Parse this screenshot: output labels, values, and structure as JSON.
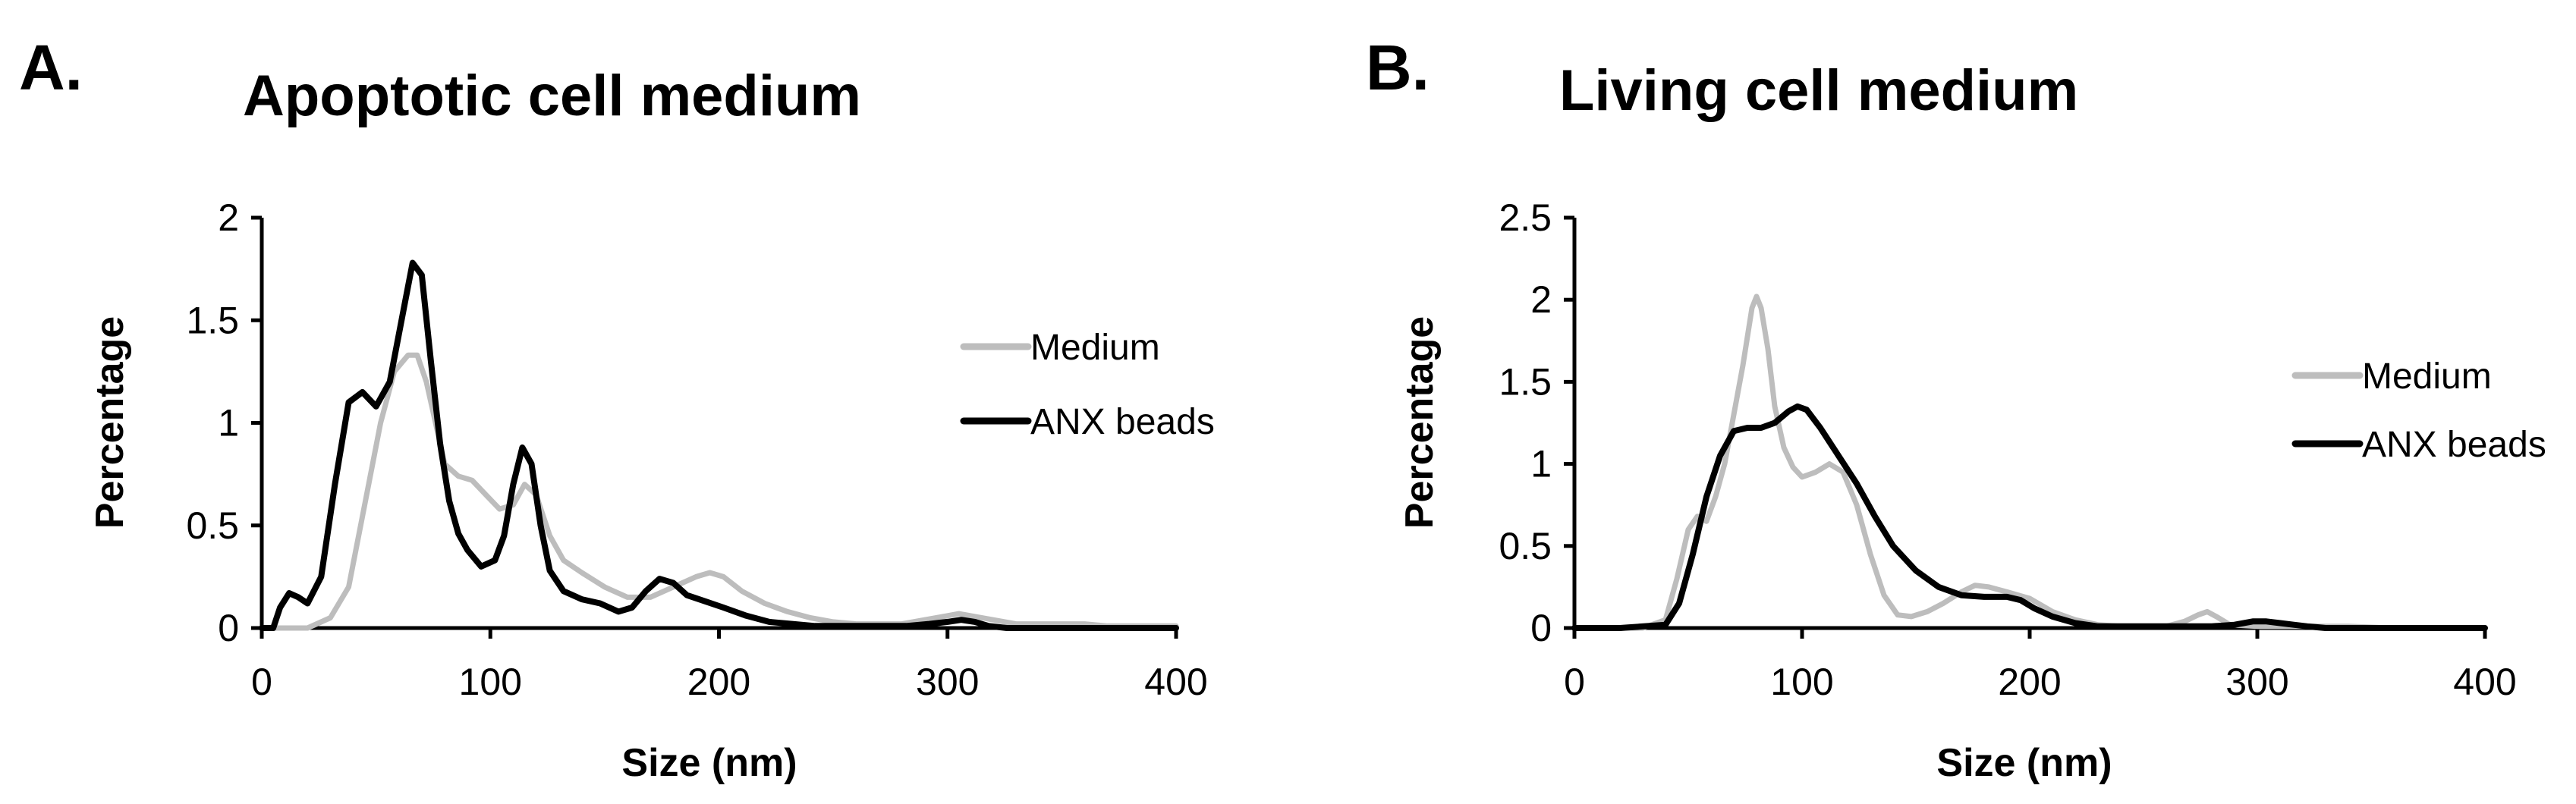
{
  "colors": {
    "medium": "#bdbdbd",
    "anx_beads": "#000000",
    "axis": "#000000",
    "background": "#ffffff"
  },
  "chart_data": [
    {
      "type": "line",
      "panel_label": "A.",
      "title": "Apoptotic cell medium",
      "xlabel": "Size (nm)",
      "ylabel": "Percentage",
      "xlim": [
        0,
        400
      ],
      "ylim": [
        0,
        2
      ],
      "xticks": [
        0,
        100,
        200,
        300,
        400
      ],
      "xtick_labels": [
        "0",
        "100",
        "200",
        "300",
        "400"
      ],
      "yticks": [
        0,
        0.5,
        1,
        1.5,
        2
      ],
      "ytick_labels": [
        "0",
        "0.5",
        "1",
        "1.5",
        "2"
      ],
      "grid": false,
      "legend_position": "right",
      "series": [
        {
          "name": "Medium",
          "color": "#bdbdbd",
          "x": [
            0,
            20,
            30,
            38,
            45,
            52,
            58,
            64,
            68,
            72,
            76,
            80,
            86,
            92,
            98,
            104,
            110,
            115,
            120,
            126,
            132,
            140,
            150,
            160,
            170,
            180,
            190,
            196,
            202,
            210,
            220,
            230,
            240,
            250,
            260,
            270,
            280,
            290,
            300,
            305,
            310,
            320,
            330,
            340,
            350,
            360,
            370,
            380,
            390,
            400
          ],
          "values": [
            0,
            0,
            0.05,
            0.2,
            0.6,
            1.0,
            1.25,
            1.33,
            1.33,
            1.2,
            1.0,
            0.8,
            0.74,
            0.72,
            0.65,
            0.58,
            0.6,
            0.7,
            0.65,
            0.45,
            0.33,
            0.27,
            0.2,
            0.15,
            0.15,
            0.2,
            0.25,
            0.27,
            0.25,
            0.18,
            0.12,
            0.08,
            0.05,
            0.03,
            0.02,
            0.02,
            0.02,
            0.04,
            0.06,
            0.07,
            0.06,
            0.04,
            0.02,
            0.02,
            0.02,
            0.02,
            0.01,
            0.01,
            0.01,
            0.01
          ]
        },
        {
          "name": "ANX beads",
          "color": "#000000",
          "x": [
            0,
            5,
            8,
            12,
            16,
            20,
            26,
            32,
            38,
            44,
            50,
            56,
            62,
            66,
            70,
            74,
            78,
            82,
            86,
            90,
            96,
            102,
            106,
            110,
            114,
            118,
            122,
            126,
            132,
            140,
            148,
            156,
            162,
            168,
            174,
            180,
            186,
            194,
            202,
            212,
            222,
            232,
            242,
            252,
            262,
            272,
            282,
            292,
            300,
            306,
            312,
            318,
            326,
            340,
            360,
            380,
            400
          ],
          "values": [
            0,
            0,
            0.1,
            0.17,
            0.15,
            0.12,
            0.25,
            0.7,
            1.1,
            1.15,
            1.08,
            1.2,
            1.55,
            1.78,
            1.72,
            1.3,
            0.9,
            0.62,
            0.46,
            0.38,
            0.3,
            0.33,
            0.45,
            0.7,
            0.88,
            0.8,
            0.5,
            0.28,
            0.18,
            0.14,
            0.12,
            0.08,
            0.1,
            0.18,
            0.24,
            0.22,
            0.16,
            0.13,
            0.1,
            0.06,
            0.03,
            0.02,
            0.01,
            0.01,
            0.01,
            0.01,
            0.01,
            0.02,
            0.03,
            0.04,
            0.03,
            0.01,
            0,
            0,
            0,
            0,
            0
          ]
        }
      ]
    },
    {
      "type": "line",
      "panel_label": "B.",
      "title": "Living cell medium",
      "xlabel": "Size (nm)",
      "ylabel": "Percentage",
      "xlim": [
        0,
        400
      ],
      "ylim": [
        0,
        2.5
      ],
      "xticks": [
        0,
        100,
        200,
        300,
        400
      ],
      "xtick_labels": [
        "0",
        "100",
        "200",
        "300",
        "400"
      ],
      "yticks": [
        0,
        0.5,
        1,
        1.5,
        2,
        2.5
      ],
      "ytick_labels": [
        "0",
        "0.5",
        "1",
        "1.5",
        "2",
        "2.5"
      ],
      "grid": false,
      "legend_position": "right",
      "series": [
        {
          "name": "Medium",
          "color": "#bdbdbd",
          "x": [
            0,
            30,
            40,
            45,
            50,
            54,
            58,
            62,
            66,
            70,
            74,
            78,
            80,
            82,
            85,
            88,
            92,
            96,
            100,
            106,
            112,
            118,
            124,
            130,
            136,
            142,
            148,
            155,
            162,
            170,
            176,
            182,
            190,
            200,
            210,
            220,
            230,
            240,
            250,
            260,
            268,
            274,
            278,
            282,
            288,
            300,
            320,
            340,
            360,
            380,
            400
          ],
          "values": [
            0,
            0,
            0.05,
            0.3,
            0.6,
            0.68,
            0.65,
            0.8,
            1.0,
            1.3,
            1.6,
            1.95,
            2.02,
            1.95,
            1.7,
            1.35,
            1.1,
            0.98,
            0.92,
            0.95,
            1.0,
            0.95,
            0.75,
            0.45,
            0.2,
            0.08,
            0.07,
            0.1,
            0.15,
            0.22,
            0.26,
            0.25,
            0.22,
            0.18,
            0.1,
            0.05,
            0.02,
            0.01,
            0.01,
            0.01,
            0.04,
            0.08,
            0.1,
            0.07,
            0.02,
            0.01,
            0.01,
            0.01,
            0,
            0,
            0
          ]
        },
        {
          "name": "ANX beads",
          "color": "#000000",
          "x": [
            0,
            20,
            40,
            46,
            52,
            58,
            64,
            70,
            76,
            82,
            88,
            94,
            98,
            102,
            108,
            116,
            124,
            132,
            140,
            150,
            160,
            170,
            180,
            190,
            196,
            202,
            210,
            220,
            230,
            240,
            250,
            260,
            270,
            280,
            290,
            298,
            304,
            310,
            316,
            322,
            330,
            340,
            350,
            360,
            380,
            400
          ],
          "values": [
            0,
            0,
            0.02,
            0.15,
            0.45,
            0.8,
            1.05,
            1.2,
            1.22,
            1.22,
            1.25,
            1.32,
            1.35,
            1.33,
            1.22,
            1.05,
            0.88,
            0.68,
            0.5,
            0.35,
            0.25,
            0.2,
            0.19,
            0.19,
            0.17,
            0.12,
            0.07,
            0.03,
            0.01,
            0.01,
            0.01,
            0.01,
            0.01,
            0.01,
            0.02,
            0.04,
            0.04,
            0.03,
            0.02,
            0.01,
            0,
            0,
            0,
            0,
            0,
            0
          ]
        }
      ]
    }
  ]
}
